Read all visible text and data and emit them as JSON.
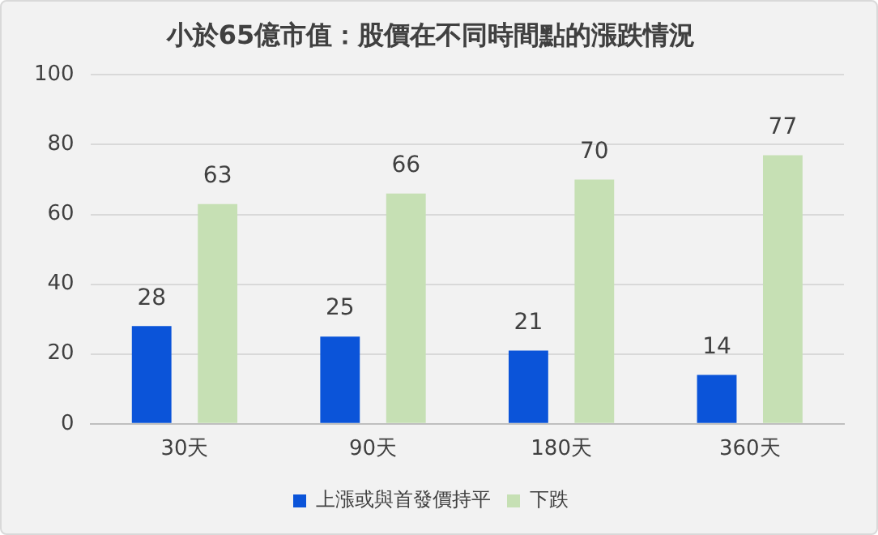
{
  "chart_data": {
    "type": "bar",
    "title": "小於65億市值：股價在不同時間點的漲跌情況",
    "categories": [
      "30天",
      "90天",
      "180天",
      "360天"
    ],
    "series": [
      {
        "name": "上漲或與首發價持平",
        "color": "#0b54d9",
        "values": [
          28,
          25,
          21,
          14
        ]
      },
      {
        "name": "下跌",
        "color": "#c6e0b4",
        "values": [
          63,
          66,
          70,
          77
        ]
      }
    ],
    "ylim": [
      0,
      100
    ],
    "yticks": [
      0,
      20,
      40,
      60,
      80,
      100
    ],
    "grid": "y",
    "legend": "bottom",
    "data_labels": true
  }
}
